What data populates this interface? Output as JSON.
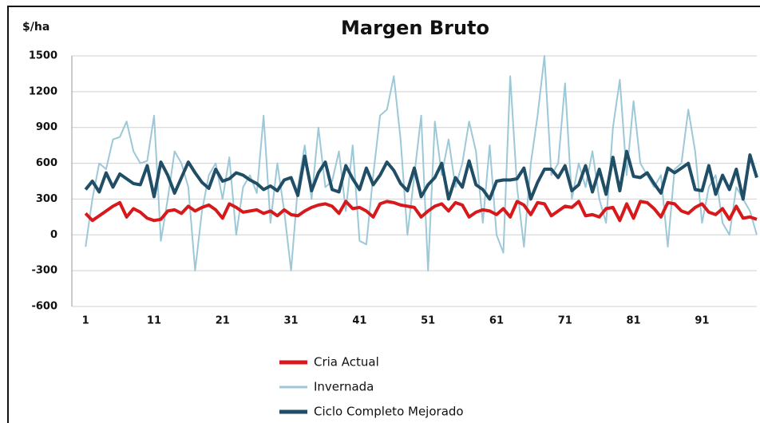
{
  "chart_data": {
    "type": "line",
    "title": "Margen Bruto",
    "ylabel": "$/ha",
    "x": [
      1,
      2,
      3,
      4,
      5,
      6,
      7,
      8,
      9,
      10,
      11,
      12,
      13,
      14,
      15,
      16,
      17,
      18,
      19,
      20,
      21,
      22,
      23,
      24,
      25,
      26,
      27,
      28,
      29,
      30,
      31,
      32,
      33,
      34,
      35,
      36,
      37,
      38,
      39,
      40,
      41,
      42,
      43,
      44,
      45,
      46,
      47,
      48,
      49,
      50,
      51,
      52,
      53,
      54,
      55,
      56,
      57,
      58,
      59,
      60,
      61,
      62,
      63,
      64,
      65,
      66,
      67,
      68,
      69,
      70,
      71,
      72,
      73,
      74,
      75,
      76,
      77,
      78,
      79,
      80,
      81,
      82,
      83,
      84,
      85,
      86,
      87,
      88,
      89,
      90,
      91,
      92,
      93,
      94,
      95,
      96,
      97,
      98,
      99
    ],
    "xlim": [
      -1,
      99
    ],
    "xticks": [
      1,
      11,
      21,
      31,
      41,
      51,
      61,
      71,
      81,
      91
    ],
    "ylim": [
      -600,
      1500
    ],
    "yticks": [
      1500,
      1200,
      900,
      600,
      300,
      0,
      -300,
      -600
    ],
    "grid": true,
    "legend": "bottom",
    "series": [
      {
        "name": "Cria Actual",
        "color": "#d7191c",
        "width": 4,
        "values": [
          180,
          120,
          160,
          200,
          240,
          270,
          150,
          220,
          190,
          140,
          120,
          130,
          200,
          210,
          180,
          240,
          200,
          230,
          250,
          210,
          140,
          260,
          230,
          190,
          200,
          210,
          180,
          200,
          160,
          210,
          170,
          160,
          200,
          230,
          250,
          260,
          240,
          180,
          280,
          220,
          230,
          200,
          150,
          260,
          280,
          270,
          250,
          240,
          230,
          150,
          200,
          240,
          260,
          200,
          270,
          250,
          150,
          190,
          210,
          200,
          170,
          220,
          150,
          280,
          250,
          170,
          270,
          260,
          160,
          200,
          240,
          230,
          280,
          160,
          170,
          150,
          220,
          230,
          120,
          260,
          140,
          280,
          270,
          220,
          150,
          270,
          260,
          200,
          180,
          230,
          260,
          190,
          170,
          220,
          130,
          240,
          140,
          150,
          130
        ]
      },
      {
        "name": "Invernada",
        "color": "#9cc8d8",
        "width": 2,
        "values": [
          -100,
          300,
          600,
          550,
          800,
          820,
          950,
          700,
          600,
          620,
          1000,
          -50,
          300,
          700,
          600,
          400,
          -300,
          200,
          500,
          600,
          300,
          650,
          0,
          400,
          500,
          350,
          1000,
          100,
          600,
          200,
          -300,
          400,
          750,
          300,
          900,
          400,
          450,
          700,
          200,
          750,
          -50,
          -80,
          500,
          1000,
          1050,
          1330,
          800,
          0,
          500,
          1000,
          -300,
          950,
          500,
          800,
          400,
          600,
          950,
          700,
          100,
          750,
          0,
          -150,
          1330,
          400,
          -100,
          600,
          1000,
          1500,
          500,
          600,
          1270,
          300,
          600,
          400,
          700,
          300,
          100,
          900,
          1300,
          500,
          1120,
          600,
          500,
          400,
          500,
          -100,
          550,
          600,
          1050,
          700,
          100,
          400,
          500,
          100,
          0,
          400,
          300,
          200,
          0
        ]
      },
      {
        "name": "Ciclo Completo Mejorado",
        "color": "#1f4e66",
        "width": 4,
        "values": [
          380,
          450,
          360,
          520,
          400,
          510,
          470,
          430,
          420,
          580,
          320,
          610,
          500,
          350,
          480,
          610,
          520,
          440,
          390,
          550,
          450,
          470,
          520,
          500,
          460,
          430,
          380,
          410,
          370,
          460,
          480,
          330,
          660,
          370,
          520,
          610,
          380,
          360,
          580,
          470,
          380,
          560,
          420,
          500,
          610,
          540,
          430,
          370,
          560,
          320,
          420,
          480,
          600,
          300,
          480,
          400,
          620,
          420,
          380,
          300,
          450,
          460,
          460,
          470,
          560,
          300,
          440,
          550,
          550,
          480,
          580,
          370,
          420,
          580,
          360,
          550,
          340,
          650,
          370,
          700,
          490,
          480,
          520,
          430,
          350,
          560,
          520,
          560,
          600,
          380,
          370,
          580,
          340,
          500,
          380,
          550,
          300,
          670,
          480
        ]
      }
    ]
  }
}
